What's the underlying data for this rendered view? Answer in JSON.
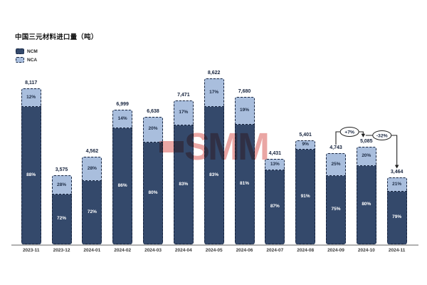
{
  "title": "中国三元材料进口量（吨）",
  "legend": {
    "items": [
      {
        "label": "NCM",
        "color": "#34496b"
      },
      {
        "label": "NCA",
        "color": "#a9bedd"
      }
    ]
  },
  "watermark": {
    "text": "SMM",
    "color": "#d64d49"
  },
  "colors": {
    "ncm": "#34496b",
    "nca": "#a9bedd",
    "segment_border": "#16233d",
    "axis": "#b1b1b1",
    "text": "#16233d"
  },
  "chart_data": {
    "type": "bar",
    "stacked": true,
    "title": "中国三元材料进口量（吨）",
    "unit": "吨",
    "grid": false,
    "legend_position": "top-left",
    "categories": [
      "2023-11",
      "2023-12",
      "2024-01",
      "2024-02",
      "2024-03",
      "2024-04",
      "2024-05",
      "2024-06",
      "2024-07",
      "2024-08",
      "2024-09",
      "2024-10",
      "2024-11"
    ],
    "totals": [
      8117,
      3575,
      4562,
      6999,
      6638,
      7471,
      8622,
      7680,
      4431,
      5401,
      4743,
      5085,
      3464
    ],
    "total_labels": [
      "8,117",
      "3,575",
      "4,562",
      "6,999",
      "6,638",
      "7,471",
      "8,622",
      "7,680",
      "4,431",
      "5,401",
      "4,743",
      "5,085",
      "3,464"
    ],
    "series": [
      {
        "name": "NCM",
        "pct": [
          88,
          72,
          72,
          86,
          80,
          83,
          83,
          81,
          87,
          91,
          75,
          80,
          79
        ]
      },
      {
        "name": "NCA",
        "pct": [
          12,
          28,
          28,
          14,
          20,
          17,
          17,
          19,
          13,
          9,
          25,
          20,
          21
        ]
      }
    ],
    "annotations": [
      {
        "label": "+7%",
        "from_index": 10,
        "to_index": 11
      },
      {
        "label": "-32%",
        "from_index": 11,
        "to_index": 12
      }
    ]
  }
}
